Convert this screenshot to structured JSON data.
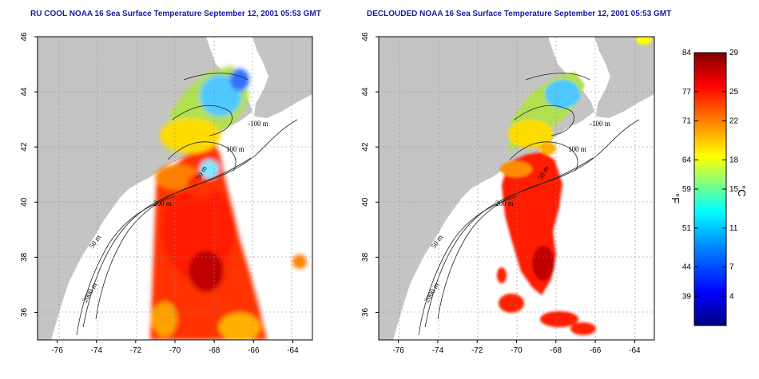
{
  "panels": [
    {
      "id": "left",
      "title": "RU COOL NOAA 16 Sea Surface Temperature September 12, 2001 05:53 GMT"
    },
    {
      "id": "right",
      "title": "DECLOUDED NOAA 16 Sea Surface Temperature September 12, 2001 05:53 GMT"
    }
  ],
  "map_extent": {
    "lon": [
      -77,
      -63
    ],
    "lat": [
      35,
      46
    ]
  },
  "lon_ticks": [
    -76,
    -74,
    -72,
    -70,
    -68,
    -66,
    -64
  ],
  "lat_ticks": [
    36,
    38,
    40,
    42,
    44,
    46
  ],
  "contour_labels_left": [
    "-100 m",
    "100 m",
    "50 m",
    "200 m",
    "50 m",
    "2000 m"
  ],
  "contour_labels_right": [
    "-100 m",
    "100 m",
    "50 m",
    "200 m",
    "50 m",
    "2000 m"
  ],
  "colorbar": {
    "fahrenheit_ticks": [
      "84",
      "77",
      "71",
      "64",
      "59",
      "51",
      "44",
      "39"
    ],
    "celsius_ticks": [
      "29",
      "25",
      "22",
      "18",
      "15",
      "11",
      "7",
      "4"
    ],
    "fahrenheit_unit": "°F",
    "celsius_unit": "°C",
    "celsius_range": [
      1,
      29
    ],
    "colors": [
      "#00007f",
      "#0000ff",
      "#0080ff",
      "#00ffff",
      "#80ff80",
      "#ffff00",
      "#ff8000",
      "#ff0000",
      "#7f0000"
    ]
  },
  "colors": {
    "land": "#c4c4c4",
    "ocean": "#ffffff",
    "title": "#1a1aa0"
  }
}
